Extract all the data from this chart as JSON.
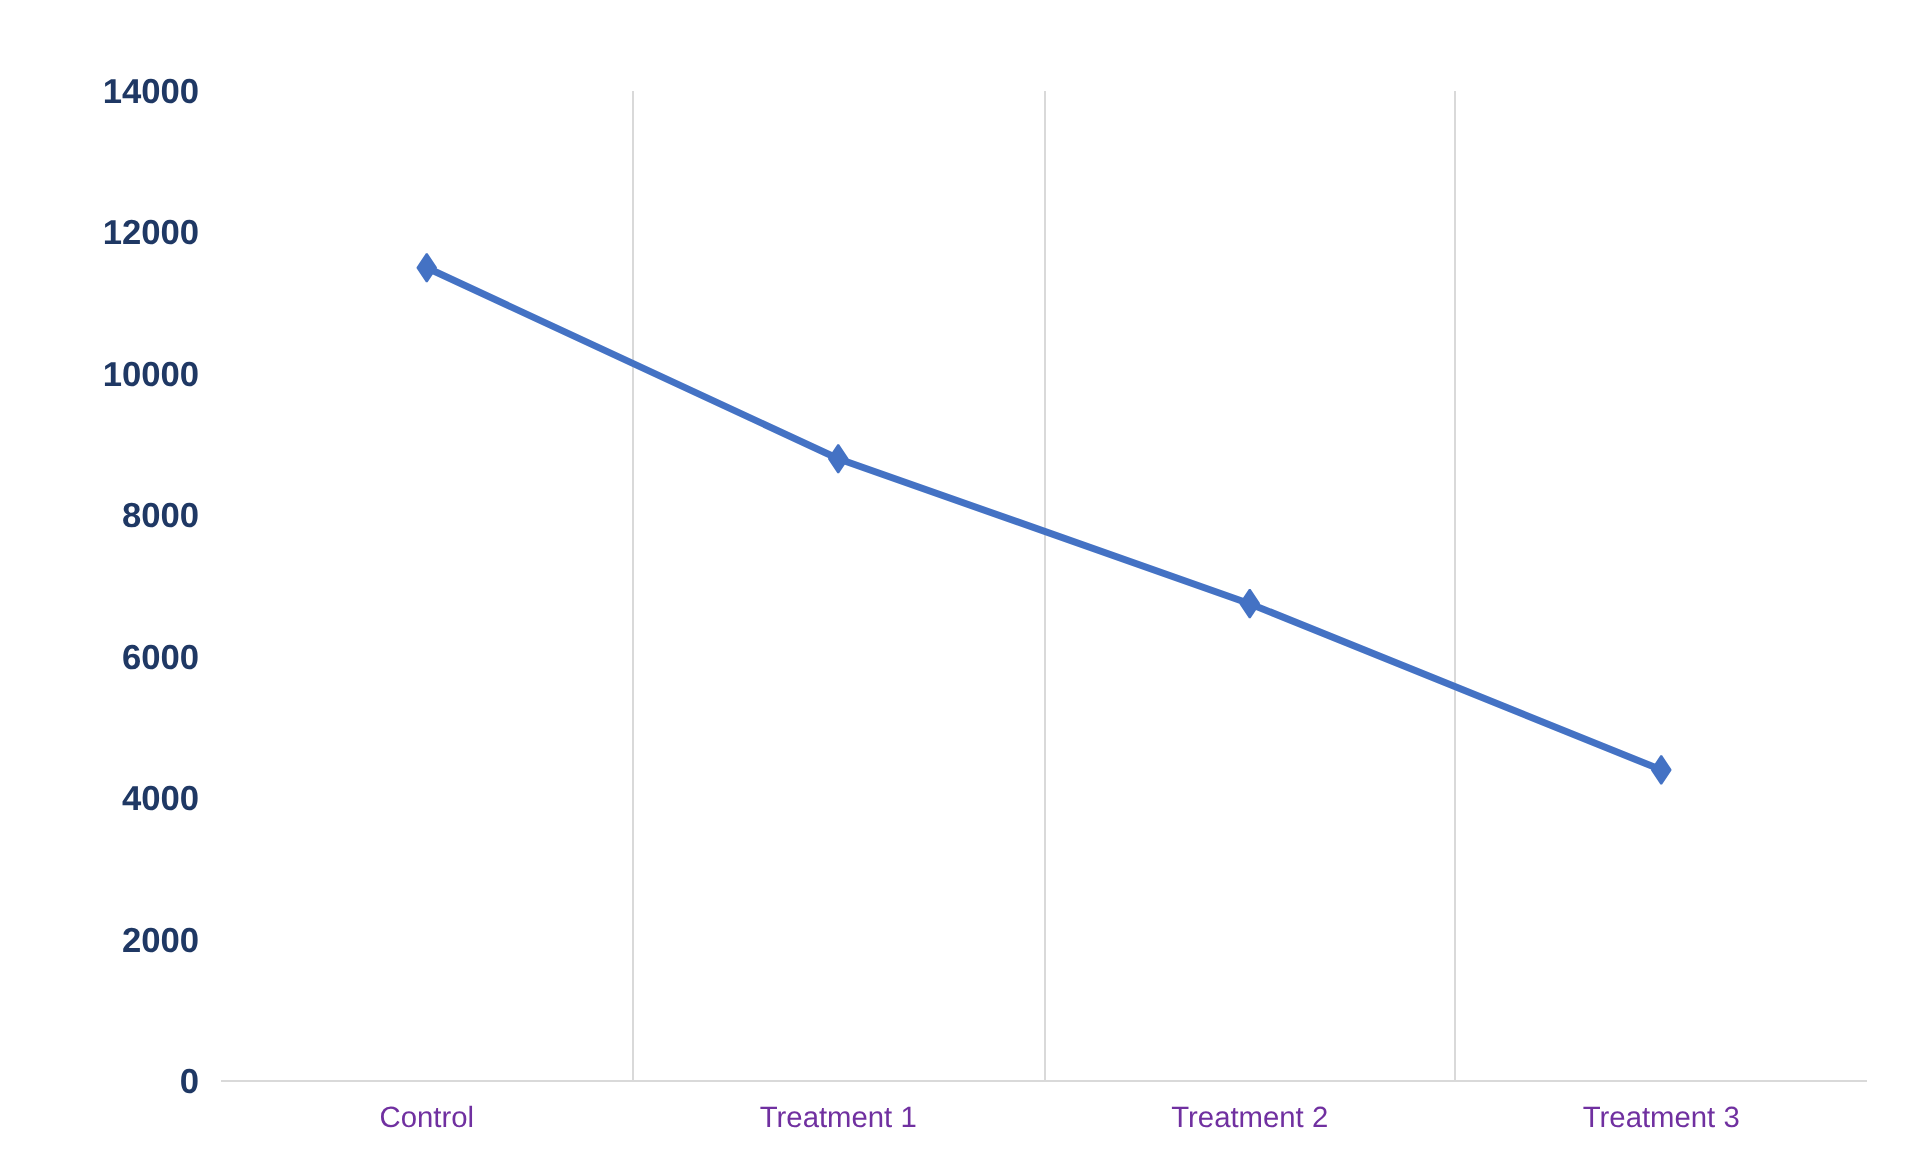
{
  "chart_data": {
    "type": "line",
    "categories": [
      "Control",
      "Treatment 1",
      "Treatment 2",
      "Treatment 3"
    ],
    "series": [
      {
        "color": "#4472c4",
        "values": [
          11500,
          8800,
          6750,
          4400
        ]
      }
    ],
    "ylim": [
      0,
      14000
    ],
    "yticks": [
      0,
      2000,
      4000,
      6000,
      8000,
      10000,
      12000,
      14000
    ],
    "grid": "x",
    "marker": "diamond",
    "line_style": "solid"
  }
}
